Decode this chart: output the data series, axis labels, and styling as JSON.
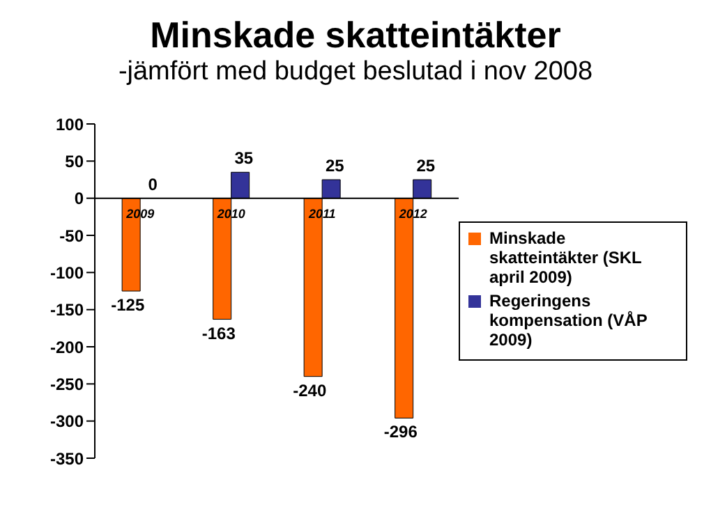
{
  "chart_data": {
    "type": "bar",
    "title": "Minskade skatteintäkter",
    "subtitle": "-jämfört med budget beslutad i nov 2008",
    "categories": [
      "2009",
      "2010",
      "2011",
      "2012"
    ],
    "series": [
      {
        "name": "Minskade skatteintäkter (SKL april 2009)",
        "color": "#ff6600",
        "values": [
          -125,
          -163,
          -240,
          -296
        ]
      },
      {
        "name": "Regeringens kompensation (VÅP 2009)",
        "color": "#333399",
        "values": [
          0,
          35,
          25,
          25
        ]
      }
    ],
    "data_labels": true,
    "ylim": [
      -350,
      100
    ],
    "yticks": [
      -350,
      -300,
      -250,
      -200,
      -150,
      -100,
      -50,
      0,
      50,
      100
    ],
    "grid": false,
    "legend": "right"
  }
}
